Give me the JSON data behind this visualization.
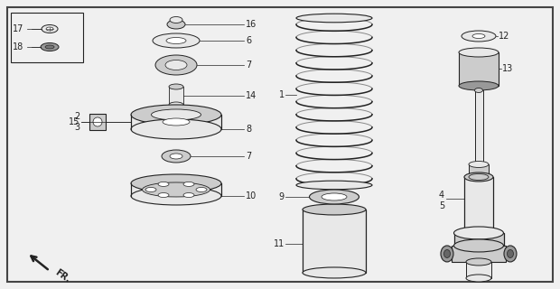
{
  "bg_color": "#f0f0f0",
  "line_color": "#222222",
  "fill_light": "#e8e8e8",
  "fill_mid": "#cccccc",
  "fill_dark": "#999999",
  "fig_width": 6.2,
  "fig_height": 3.2,
  "dpi": 100
}
